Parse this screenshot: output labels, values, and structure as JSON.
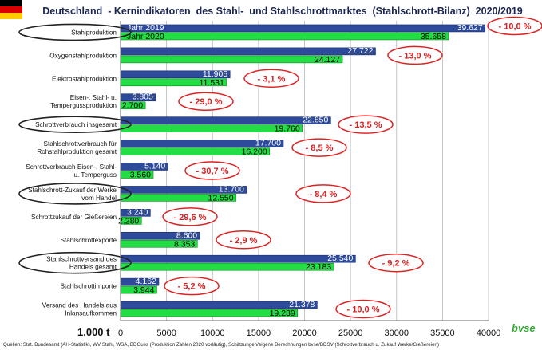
{
  "title": "Deutschland  - Kernindikatoren  des Stahl-  und Stahlschrottmarktes  (Stahlschrott-Bilanz)  2020/2019",
  "unit_label": "1.000 t",
  "source_note": "Quellen: Stat. Bundesamt (AH-Statistik), WV Stahl, WSA, BDGuss (Produktion Zahlen 2020 vorläufig), Schätzungen/eigene Berechnungen bvse/BDSV (Schrottverbrauch u. Zukauf Werke/Gießereien)",
  "logo_text": "bvse",
  "colors": {
    "year2019": "#2e4a9a",
    "year2020": "#22dd44",
    "ellipse": "#dd2222",
    "pct_text": "#d42020",
    "label_bg": "#ffffff",
    "title_text": "#1a2550"
  },
  "chart_data": {
    "type": "bar",
    "orientation": "horizontal",
    "title": "Deutschland  - Kernindikatoren  des Stahl-  und Stahlschrottmarktes  (Stahlschrott-Bilanz)  2020/2019",
    "xlabel": "1.000 t",
    "xlim": [
      0,
      40000
    ],
    "xticks": [
      "0",
      "5000",
      "10000",
      "15000",
      "20000",
      "25000",
      "30000",
      "35000",
      "40000"
    ],
    "xtick_values": [
      0,
      5000,
      10000,
      15000,
      20000,
      25000,
      30000,
      35000,
      40000
    ],
    "grid": true,
    "categories": [
      "Stahlproduktion",
      "Oxygenstahlproduktion",
      "Elektrostahlproduktion",
      "Eisen-, Stahl- u. Tempergussproduktion",
      "Schrottverbrauch insgesamt",
      "Stahlschrottverbrauch für Rohstahlproduktion gesamt",
      "Schrottverbrauch Eisen-, Stahl- u. Temperguss",
      "Stahlschrott-Zukauf der Werke vom Handel",
      "Schrottzukauf der Gießereien",
      "Stahlschrottexporte",
      "Stahlschrottversand des Handels gesamt",
      "Stahlschrottimporte",
      "Versand des Handels aus Inlansaufkommen"
    ],
    "category_lines": [
      [
        "Stahlproduktion"
      ],
      [
        "Oxygenstahlproduktion"
      ],
      [
        "Elektrostahlproduktion"
      ],
      [
        "Eisen-, Stahl- u.",
        "Tempergussproduktion"
      ],
      [
        "Schrottverbrauch insgesamt"
      ],
      [
        "Stahlschrottverbrauch für",
        "Rohstahlproduktion gesamt"
      ],
      [
        "Schrottverbrauch Eisen-, Stahl-",
        "u. Temperguss"
      ],
      [
        "Stahlschrott-Zukauf der Werke",
        "vom Handel"
      ],
      [
        "Schrottzukauf der Gießereien"
      ],
      [
        "Stahlschrottexporte"
      ],
      [
        "Stahlschrottversand des",
        "Handels gesamt"
      ],
      [
        "Stahlschrottimporte"
      ],
      [
        "Versand des Handels aus",
        "Inlansaufkommen"
      ]
    ],
    "circled_categories": [
      0,
      4,
      7,
      10
    ],
    "series": [
      {
        "name": "Jahr 2019",
        "values": [
          39627,
          27722,
          11905,
          3805,
          22850,
          17700,
          5140,
          13700,
          3240,
          8600,
          25540,
          4162,
          21378
        ],
        "labels": [
          "39.627",
          "27.722",
          "11.905",
          "3.805",
          "22.850",
          "17.700",
          "5.140",
          "13.700",
          "3.240",
          "8.600",
          "25.540",
          "4.162",
          "21.378"
        ]
      },
      {
        "name": "Jahr 2020",
        "values": [
          35658,
          24127,
          11531,
          2700,
          19760,
          16200,
          3560,
          12550,
          2280,
          8353,
          23183,
          3944,
          19239
        ],
        "labels": [
          "35.658",
          "24.127",
          "11.531",
          "2.700",
          "19.760",
          "16.200",
          "3.560",
          "12.550",
          "2.280",
          "8.353",
          "23.183",
          "3.944",
          "19.239"
        ]
      }
    ],
    "changes": [
      "- 10,0 %",
      "- 13,0 %",
      "- 3,1 %",
      "- 29,0 %",
      "- 13,5 %",
      "- 8,5 %",
      "- 30,7 %",
      "- 8,4 %",
      "- 29,6 %",
      "- 2,9 %",
      "- 9,2 %",
      "- 5,2 %",
      "- 10,0 %"
    ]
  }
}
